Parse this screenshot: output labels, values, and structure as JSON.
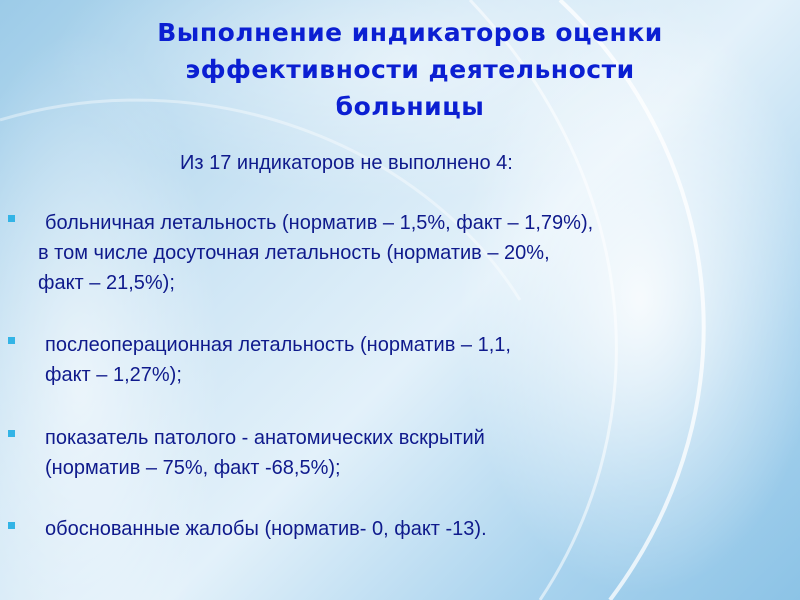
{
  "title": {
    "line1": "Выполнение индикаторов оценки",
    "line2": "эффективности деятельности",
    "line3": "больницы"
  },
  "intro": "Из 17 индикаторов не выполнено 4:",
  "bullets": [
    {
      "lines": [
        "больничная летальность (норматив – 1,5%, факт – 1,79%),",
        "в том числе досуточная летальность (норматив – 20%,",
        "факт – 21,5%);"
      ]
    },
    {
      "lines": [
        "послеоперационная летальность (норматив – 1,1,",
        "факт – 1,27%);"
      ]
    },
    {
      "lines": [
        "показатель патолого - анатомических вскрытий",
        "(норматив – 75%, факт -68,5%);"
      ]
    },
    {
      "lines": [
        "обоснованные жалобы (норматив- 0, факт -13)."
      ]
    }
  ],
  "colors": {
    "title": "#0b1fd2",
    "text": "#0f1a8c",
    "bullet": "#33b4e6"
  }
}
